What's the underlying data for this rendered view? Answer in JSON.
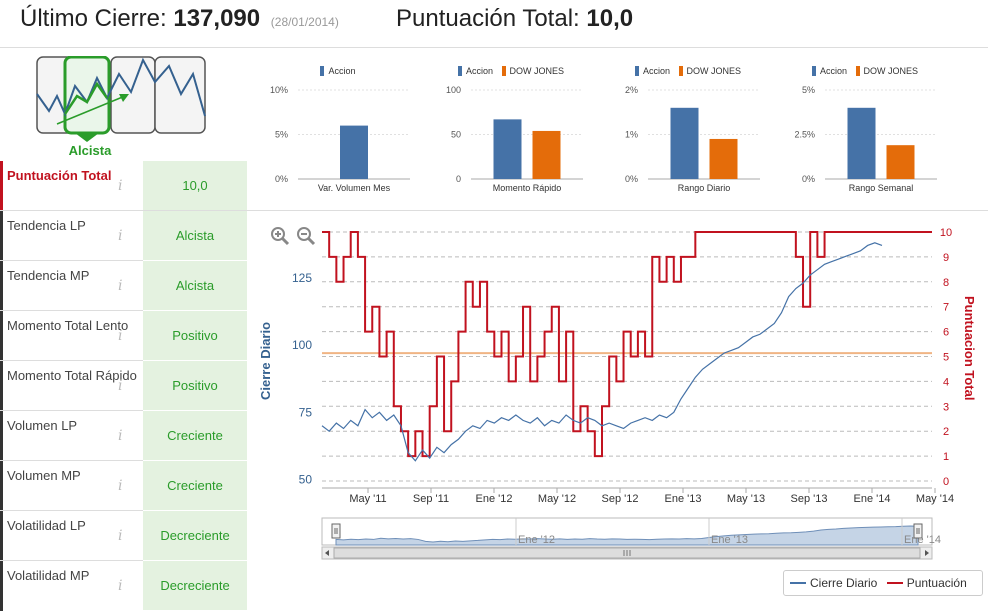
{
  "header": {
    "close_label": "Último Cierre:",
    "close_value": "137,090",
    "close_date": "(28/01/2014)",
    "score_label": "Puntuación Total:",
    "score_value": "10,0"
  },
  "trend_badge": {
    "label": "Alcista"
  },
  "ratings": [
    {
      "label": "Puntuación Total",
      "value": "10,0",
      "total": true
    },
    {
      "label": "Tendencia LP",
      "value": "Alcista"
    },
    {
      "label": "Tendencia MP",
      "value": "Alcista"
    },
    {
      "label": "Momento Total Lento",
      "value": "Positivo"
    },
    {
      "label": "Momento Total Rápido",
      "value": "Positivo"
    },
    {
      "label": "Volumen LP",
      "value": "Creciente"
    },
    {
      "label": "Volumen MP",
      "value": "Creciente"
    },
    {
      "label": "Volatilidad LP",
      "value": "Decreciente"
    },
    {
      "label": "Volatilidad MP",
      "value": "Decreciente"
    }
  ],
  "info_icon": "i",
  "colors": {
    "accion": "#4572a7",
    "dow": "#e46c0a",
    "red": "#c1121f",
    "green": "#2a9c2a"
  },
  "chart_data": [
    {
      "type": "bar",
      "categories": [
        "Var. Volumen Mes"
      ],
      "series": [
        {
          "name": "Accion",
          "values": [
            6
          ]
        }
      ],
      "yticks": [
        "10%",
        "5%",
        "0%"
      ],
      "ylim": [
        0,
        10
      ]
    },
    {
      "type": "bar",
      "categories": [
        "Momento Rápido"
      ],
      "series": [
        {
          "name": "Accion",
          "values": [
            67
          ]
        },
        {
          "name": "DOW JONES",
          "values": [
            54
          ]
        }
      ],
      "yticks": [
        "100",
        "50",
        "0"
      ],
      "ylim": [
        0,
        100
      ]
    },
    {
      "type": "bar",
      "categories": [
        "Rango Diario"
      ],
      "series": [
        {
          "name": "Accion",
          "values": [
            1.6
          ]
        },
        {
          "name": "DOW JONES",
          "values": [
            0.9
          ]
        }
      ],
      "yticks": [
        "2%",
        "1%",
        "0%"
      ],
      "ylim": [
        0,
        2
      ]
    },
    {
      "type": "bar",
      "categories": [
        "Rango Semanal"
      ],
      "series": [
        {
          "name": "Accion",
          "values": [
            4.0
          ]
        },
        {
          "name": "DOW JONES",
          "values": [
            1.9
          ]
        }
      ],
      "yticks": [
        "5%",
        "2.5%",
        "0%"
      ],
      "ylim": [
        0,
        5
      ]
    },
    {
      "type": "line",
      "ylabel": "Cierre Diario",
      "y2label": "Puntuacion Total",
      "yticks_left": [
        "125",
        "100",
        "75",
        "50"
      ],
      "yticks_right": [
        "10",
        "9",
        "8",
        "7",
        "6",
        "5",
        "4",
        "3",
        "2",
        "1",
        "0"
      ],
      "xticks": [
        "May '11",
        "Sep '11",
        "Ene '12",
        "May '12",
        "Sep '12",
        "Ene '13",
        "May '13",
        "Sep '13",
        "Ene '14",
        "May '14"
      ],
      "ylim": [
        48,
        142
      ],
      "y2lim": [
        0,
        10
      ],
      "threshold": 97,
      "x": [
        0,
        2,
        4,
        6,
        8,
        10,
        12,
        14,
        16,
        18,
        20,
        22,
        24,
        26,
        28,
        30,
        32,
        34,
        36,
        38,
        40,
        42,
        44,
        46,
        48,
        50,
        52,
        54,
        56,
        58,
        60,
        62,
        64,
        66,
        68,
        70,
        72,
        74,
        76,
        78,
        80,
        82,
        84,
        86,
        88,
        90,
        92,
        94,
        96,
        98,
        100,
        102,
        104,
        106,
        108,
        110,
        112,
        114,
        116,
        118,
        120,
        122,
        124,
        126,
        128,
        130,
        132,
        134,
        136,
        138,
        140,
        142,
        144,
        146,
        148,
        150,
        152,
        154,
        156
      ],
      "series": [
        {
          "name": "Cierre Diario",
          "values": [
            70,
            68,
            71,
            69,
            72,
            70,
            76,
            73,
            75,
            72,
            74,
            70,
            60,
            57,
            61,
            58,
            62,
            60,
            63,
            65,
            68,
            70,
            69,
            72,
            71,
            73,
            72,
            74,
            72,
            71,
            73,
            70,
            72,
            71,
            74,
            72,
            71,
            73,
            72,
            70,
            71,
            70,
            69,
            71,
            72,
            73,
            72,
            74,
            73,
            75,
            80,
            84,
            88,
            91,
            93,
            95,
            97,
            98,
            99,
            101,
            103,
            104,
            106,
            108,
            112,
            118,
            121,
            123,
            126,
            128,
            130,
            131,
            132,
            133,
            134,
            135,
            137,
            138,
            137
          ]
        },
        {
          "name": "Puntuación",
          "values": [
            10,
            9,
            8,
            9,
            10,
            9,
            6,
            7,
            5,
            6,
            3,
            2,
            1,
            2,
            1,
            3,
            5,
            2,
            4,
            6,
            8,
            7,
            8,
            6,
            5,
            6,
            4,
            5,
            7,
            4,
            5,
            6,
            7,
            4,
            6,
            2,
            3,
            2,
            1,
            3,
            5,
            4,
            6,
            5,
            6,
            5,
            9,
            8,
            9,
            8,
            9,
            9,
            10,
            10,
            10,
            10,
            10,
            10,
            10,
            10,
            10,
            10,
            10,
            10,
            10,
            10,
            9,
            7,
            10,
            9,
            10,
            10,
            10,
            10,
            10,
            10,
            10,
            10,
            10
          ]
        }
      ]
    }
  ],
  "navigator": {
    "labels": [
      "Ene '12",
      "Ene '13",
      "Ene '14"
    ]
  }
}
